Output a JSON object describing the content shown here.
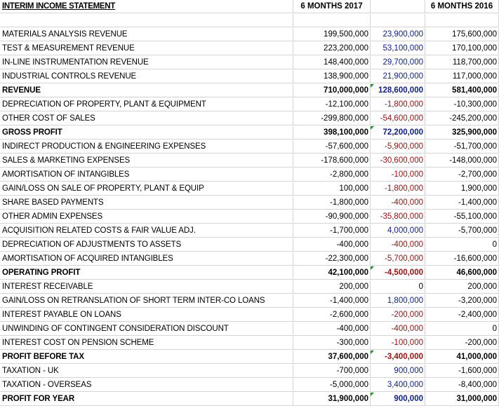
{
  "header": {
    "title": "INTERIM INCOME STATEMENT",
    "col1": "6 MONTHS 2017",
    "col2": "",
    "col3": "6 MONTHS 2016"
  },
  "rows": [
    {
      "label": "MATERIALS ANALYSIS REVENUE",
      "v2017": "199,500,000",
      "diff": "23,900,000",
      "diff_sign": "pos",
      "v2016": "175,600,000",
      "bold": false,
      "flag": false
    },
    {
      "label": "TEST & MEASUREMENT REVENUE",
      "v2017": "223,200,000",
      "diff": "53,100,000",
      "diff_sign": "pos",
      "v2016": "170,100,000",
      "bold": false,
      "flag": false
    },
    {
      "label": "IN-LINE INSTRUMENTATION REVENUE",
      "v2017": "148,400,000",
      "diff": "29,700,000",
      "diff_sign": "pos",
      "v2016": "118,700,000",
      "bold": false,
      "flag": false
    },
    {
      "label": "INDUSTRIAL CONTROLS REVENUE",
      "v2017": "138,900,000",
      "diff": "21,900,000",
      "diff_sign": "pos",
      "v2016": "117,000,000",
      "bold": false,
      "flag": false
    },
    {
      "label": "REVENUE",
      "v2017": "710,000,000",
      "diff": "128,600,000",
      "diff_sign": "pos",
      "v2016": "581,400,000",
      "bold": true,
      "flag": true
    },
    {
      "label": "DEPRECIATION OF PROPERTY, PLANT & EQUIPMENT",
      "v2017": "-12,100,000",
      "diff": "-1,800,000",
      "diff_sign": "neg",
      "v2016": "-10,300,000",
      "bold": false,
      "flag": false
    },
    {
      "label": "OTHER COST OF SALES",
      "v2017": "-299,800,000",
      "diff": "-54,600,000",
      "diff_sign": "neg",
      "v2016": "-245,200,000",
      "bold": false,
      "flag": false
    },
    {
      "label": "GROSS PROFIT",
      "v2017": "398,100,000",
      "diff": "72,200,000",
      "diff_sign": "pos",
      "v2016": "325,900,000",
      "bold": true,
      "flag": true
    },
    {
      "label": "INDIRECT PRODUCTION & ENGINEERING EXPENSES",
      "v2017": "-57,600,000",
      "diff": "-5,900,000",
      "diff_sign": "neg",
      "v2016": "-51,700,000",
      "bold": false,
      "flag": false
    },
    {
      "label": "SALES & MARKETING EXPENSES",
      "v2017": "-178,600,000",
      "diff": "-30,600,000",
      "diff_sign": "neg",
      "v2016": "-148,000,000",
      "bold": false,
      "flag": false
    },
    {
      "label": "AMORTISATION OF INTANGIBLES",
      "v2017": "-2,800,000",
      "diff": "-100,000",
      "diff_sign": "neg",
      "v2016": "-2,700,000",
      "bold": false,
      "flag": false
    },
    {
      "label": "GAIN/LOSS ON SALE OF PROPERTY, PLANT & EQUIP",
      "v2017": "100,000",
      "diff": "-1,800,000",
      "diff_sign": "neg",
      "v2016": "1,900,000",
      "bold": false,
      "flag": false
    },
    {
      "label": "SHARE BASED PAYMENTS",
      "v2017": "-1,800,000",
      "diff": "-400,000",
      "diff_sign": "neg",
      "v2016": "-1,400,000",
      "bold": false,
      "flag": false
    },
    {
      "label": "OTHER ADMIN EXPENSES",
      "v2017": "-90,900,000",
      "diff": "-35,800,000",
      "diff_sign": "neg",
      "v2016": "-55,100,000",
      "bold": false,
      "flag": false
    },
    {
      "label": "ACQUISITION RELATED COSTS & FAIR VALUE ADJ.",
      "v2017": "-1,700,000",
      "diff": "4,000,000",
      "diff_sign": "pos",
      "v2016": "-5,700,000",
      "bold": false,
      "flag": false
    },
    {
      "label": "DEPRECIATION OF ADJUSTMENTS TO ASSETS",
      "v2017": "-400,000",
      "diff": "-400,000",
      "diff_sign": "neg",
      "v2016": "0",
      "bold": false,
      "flag": false
    },
    {
      "label": "AMORTISATION OF ACQUIRED INTANGIBLES",
      "v2017": "-22,300,000",
      "diff": "-5,700,000",
      "diff_sign": "neg",
      "v2016": "-16,600,000",
      "bold": false,
      "flag": false
    },
    {
      "label": "OPERATING PROFIT",
      "v2017": "42,100,000",
      "diff": "-4,500,000",
      "diff_sign": "neg",
      "v2016": "46,600,000",
      "bold": true,
      "flag": true
    },
    {
      "label": "INTEREST RECEIVABLE",
      "v2017": "200,000",
      "diff": "0",
      "diff_sign": "zero",
      "v2016": "200,000",
      "bold": false,
      "flag": false
    },
    {
      "label": "GAIN/LOSS ON RETRANSLATION OF SHORT TERM INTER-CO LOANS",
      "v2017": "-1,400,000",
      "diff": "1,800,000",
      "diff_sign": "pos",
      "v2016": "-3,200,000",
      "bold": false,
      "flag": false
    },
    {
      "label": "INTEREST PAYABLE ON LOANS",
      "v2017": "-2,600,000",
      "diff": "-200,000",
      "diff_sign": "neg",
      "v2016": "-2,400,000",
      "bold": false,
      "flag": false
    },
    {
      "label": "UNWINDING OF CONTINGENT CONSIDERATION DISCOUNT",
      "v2017": "-400,000",
      "diff": "-400,000",
      "diff_sign": "neg",
      "v2016": "0",
      "bold": false,
      "flag": false
    },
    {
      "label": "INTEREST COST ON PENSION SCHEME",
      "v2017": "-300,000",
      "diff": "-100,000",
      "diff_sign": "neg",
      "v2016": "-200,000",
      "bold": false,
      "flag": false
    },
    {
      "label": "PROFIT BEFORE TAX",
      "v2017": "37,600,000",
      "diff": "-3,400,000",
      "diff_sign": "neg",
      "v2016": "41,000,000",
      "bold": true,
      "flag": true
    },
    {
      "label": "TAXATION - UK",
      "v2017": "-700,000",
      "diff": "900,000",
      "diff_sign": "pos",
      "v2016": "-1,600,000",
      "bold": false,
      "flag": false
    },
    {
      "label": "TAXATION - OVERSEAS",
      "v2017": "-5,000,000",
      "diff": "3,400,000",
      "diff_sign": "pos",
      "v2016": "-8,400,000",
      "bold": false,
      "flag": false
    },
    {
      "label": "PROFIT FOR YEAR",
      "v2017": "31,900,000",
      "diff": "900,000",
      "diff_sign": "pos",
      "v2016": "31,000,000",
      "bold": true,
      "flag": true
    }
  ]
}
